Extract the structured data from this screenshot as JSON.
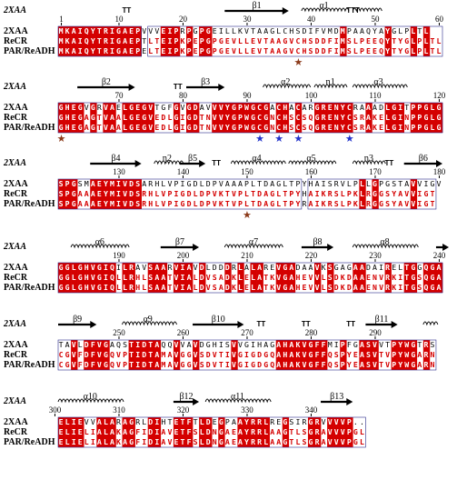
{
  "colors": {
    "identical_bg": "#d40000",
    "similar_text": "#d40000",
    "frame": "#2a2a8a",
    "catalytic_star": "#8b3a1a",
    "binding_star": "#2233cc"
  },
  "structure_label": "2XAA",
  "sequence_names": [
    "2XAA",
    "ReCR",
    "PAR/ReADH"
  ],
  "blocks": [
    {
      "ss_elements": [
        {
          "type": "tt",
          "label": "TT",
          "col": 11
        },
        {
          "type": "strand",
          "label": "β1",
          "start": 27,
          "end": 36
        },
        {
          "type": "helix",
          "label": "α1",
          "start": 39,
          "end": 45
        },
        {
          "type": "tt",
          "label": "TTT",
          "col": 46
        },
        {
          "type": "helix",
          "label": "",
          "start": 47,
          "end": 50
        }
      ],
      "numbers": [
        {
          "label": "1",
          "col": 1
        },
        {
          "label": "10",
          "col": 10
        },
        {
          "label": "20",
          "col": 20
        },
        {
          "label": "30",
          "col": 30
        },
        {
          "label": "40",
          "col": 40
        },
        {
          "label": "50",
          "col": 50
        },
        {
          "label": "60",
          "col": 60
        }
      ],
      "sequences": [
        "MKAIQYTRIGAEPVVVEIPRPGPGEILLKVTAAGLCHSDIFVMDMPAAQYAYGLPLTL",
        "MKAIQYTRIGAEPTLTEIPKPEPGPGEVLLEVTAAGVCHSDDFIMSLPEEQYTYGLPLTL",
        "MKAIQYTRIGAEPELTEIPKPEPGPGEVLLEVTAAGVCHSDDFIMSLPEEQYTYGLPLTL"
      ],
      "stars": [
        {
          "col": 38,
          "color": "catalytic_star"
        }
      ]
    },
    {
      "ss_elements": [
        {
          "type": "strand",
          "label": "β2",
          "start": 64,
          "end": 72
        },
        {
          "type": "tt",
          "label": "TT",
          "col": 79
        },
        {
          "type": "strand",
          "label": "β3",
          "start": 81,
          "end": 86
        },
        {
          "type": "helix",
          "label": "α2",
          "start": 93,
          "end": 99
        },
        {
          "type": "helix",
          "label": "η1",
          "start": 101,
          "end": 105
        },
        {
          "type": "helix",
          "label": "α3",
          "start": 107,
          "end": 114
        }
      ],
      "numbers": [
        {
          "label": "70",
          "col": 70
        },
        {
          "label": "80",
          "col": 80
        },
        {
          "label": "90",
          "col": 90
        },
        {
          "label": "100",
          "col": 100
        },
        {
          "label": "110",
          "col": 110
        },
        {
          "label": "120",
          "col": 120
        }
      ],
      "sequences": [
        "GHEGVGRVAELGEGVTGFGVGDAVVVYGPWGCGACHACARGRENYCRAAADLGITPPGLG",
        "GHEGAGTVAALGEGVEDLGIGDTNVVYGPWGCGNCHSCSQGRENYCSRAKELGINPPGLG",
        "GHEGAGTVAALGEGVEDLGIGDTNVVYGPWGCGNCHSCSQGRENYCSRAKELGINPPGLG"
      ],
      "stars": [
        {
          "col": 61,
          "color": "catalytic_star"
        },
        {
          "col": 92,
          "color": "binding_star"
        },
        {
          "col": 95,
          "color": "binding_star"
        },
        {
          "col": 98,
          "color": "binding_star"
        },
        {
          "col": 106,
          "color": "binding_star"
        }
      ]
    },
    {
      "ss_elements": [
        {
          "type": "strand",
          "label": "β4",
          "start": 126,
          "end": 133
        },
        {
          "type": "helix",
          "label": "η2",
          "start": 136,
          "end": 139
        },
        {
          "type": "strand",
          "label": "β5",
          "start": 140,
          "end": 143
        },
        {
          "type": "tt",
          "label": "TT",
          "col": 145
        },
        {
          "type": "helix",
          "label": "α4",
          "start": 148,
          "end": 155
        },
        {
          "type": "helix",
          "label": "α5",
          "start": 157,
          "end": 163
        },
        {
          "type": "helix",
          "label": "η3",
          "start": 167,
          "end": 171
        },
        {
          "type": "tt",
          "label": "TT",
          "col": 172
        },
        {
          "type": "strand",
          "label": "β6",
          "start": 175,
          "end": 180
        }
      ],
      "numbers": [
        {
          "label": "130",
          "col": 130
        },
        {
          "label": "140",
          "col": 140
        },
        {
          "label": "150",
          "col": 150
        },
        {
          "label": "160",
          "col": 160
        },
        {
          "label": "170",
          "col": 170
        },
        {
          "label": "180",
          "col": 180
        }
      ],
      "sequences": [
        "SPGSMAEYMIVDSARHLVPIGDLDPVAAAPLTDAGLTPYHAISRVLPLLGPGSTAVVIGV",
        "SPGAAAEYMIVDSRHLVPIGDLDPVKTVPLTDAGLTPYHAIKRSLPKLRGGSYAVVIGT",
        "SPGAAAEYMIVDSRHLVPIGDLDPVKTVPLTDAGLTPYRAIKRSLPKLRGGSYAVVIGT"
      ],
      "stars": [
        {
          "col": 150,
          "color": "catalytic_star"
        }
      ]
    },
    {
      "ss_elements": [
        {
          "type": "helix",
          "label": "α6",
          "start": 183,
          "end": 191
        },
        {
          "type": "strand",
          "label": "β7",
          "start": 197,
          "end": 202
        },
        {
          "type": "helix",
          "label": "α7",
          "start": 207,
          "end": 215
        },
        {
          "type": "strand",
          "label": "β8",
          "start": 219,
          "end": 223
        },
        {
          "type": "helix",
          "label": "α8",
          "start": 227,
          "end": 236
        },
        {
          "type": "strand",
          "label": "",
          "start": 240,
          "end": 241
        }
      ],
      "numbers": [
        {
          "label": "190",
          "col": 190
        },
        {
          "label": "200",
          "col": 200
        },
        {
          "label": "210",
          "col": 210
        },
        {
          "label": "220",
          "col": 220
        },
        {
          "label": "230",
          "col": 230
        },
        {
          "label": "240",
          "col": 240
        }
      ],
      "sequences": [
        "GGLGHVGIQILRAVSAARVIAVDLDDDRLALAREVGADAAVKSGAGAADAIRELTGGQGA",
        "GGLGHVGIQLLRHLSAATVIALDVSADKLELATKVGAHEVVLSDKDAAENVRKITGSQGA",
        "GGLGHVGIQLLRHLSAATVIALDVSADKLELATKVGAHEVVLSDKDAAENVRKITGSQGA"
      ],
      "stars": []
    },
    {
      "ss_elements": [
        {
          "type": "strand",
          "label": "β9",
          "start": 241,
          "end": 246
        },
        {
          "type": "helix",
          "label": "α9",
          "start": 251,
          "end": 258
        },
        {
          "type": "strand",
          "label": "β10",
          "start": 262,
          "end": 269
        },
        {
          "type": "tt",
          "label": "TT",
          "col": 272
        },
        {
          "type": "tt",
          "label": "TT",
          "col": 279
        },
        {
          "type": "tt",
          "label": "TT",
          "col": 286
        },
        {
          "type": "strand",
          "label": "β11",
          "start": 289,
          "end": 293
        },
        {
          "type": "helix",
          "label": "",
          "start": 298,
          "end": 299
        }
      ],
      "numbers": [
        {
          "label": "250",
          "col": 250
        },
        {
          "label": "260",
          "col": 260
        },
        {
          "label": "270",
          "col": 270
        },
        {
          "label": "280",
          "col": 280
        },
        {
          "label": "290",
          "col": 290
        }
      ],
      "sequences": [
        "TAVLDFVGAQSTIDTAQQVVAVDGHISVVGIHAGAHAKVGFFMIPFGASVVTPYWGTRS",
        "CGVFDFVGQVPTIDTAMAVGGVSDVTIVGIGDGQAHAKVGFFQSPYEASVTVPYWGARN",
        "CGVFDFVGQVPTIDTAMAVGGVSDVTIVGIGDGQAHAKVGFFQSPYEASVTVPYWGARN"
      ],
      "stars": []
    },
    {
      "ss_elements": [
        {
          "type": "helix",
          "label": "α10",
          "start": 301,
          "end": 310
        },
        {
          "type": "strand",
          "label": "β12",
          "start": 319,
          "end": 322
        },
        {
          "type": "helix",
          "label": "α11",
          "start": 324,
          "end": 333
        },
        {
          "type": "strand",
          "label": "β13",
          "start": 342,
          "end": 346
        }
      ],
      "numbers": [
        {
          "label": "300",
          "col": 300
        },
        {
          "label": "310",
          "col": 310
        },
        {
          "label": "320",
          "col": 320
        },
        {
          "label": "330",
          "col": 330
        },
        {
          "label": "340",
          "col": 340
        }
      ],
      "sequences": [
        "ELIEVVALARAGRLDIHTETFTLDEGPAAYRRLREGSIRGRVVVVP..",
        "ELIELIALAKAGFIDIAVETFSLDNGAEAYRRLAAGTLSGRAVVVPGL",
        "ELIELIALAKAGFIDIAVETFSLDNGAEAYRRLAAGTLSGRAVVVPGL"
      ],
      "stars": []
    }
  ]
}
